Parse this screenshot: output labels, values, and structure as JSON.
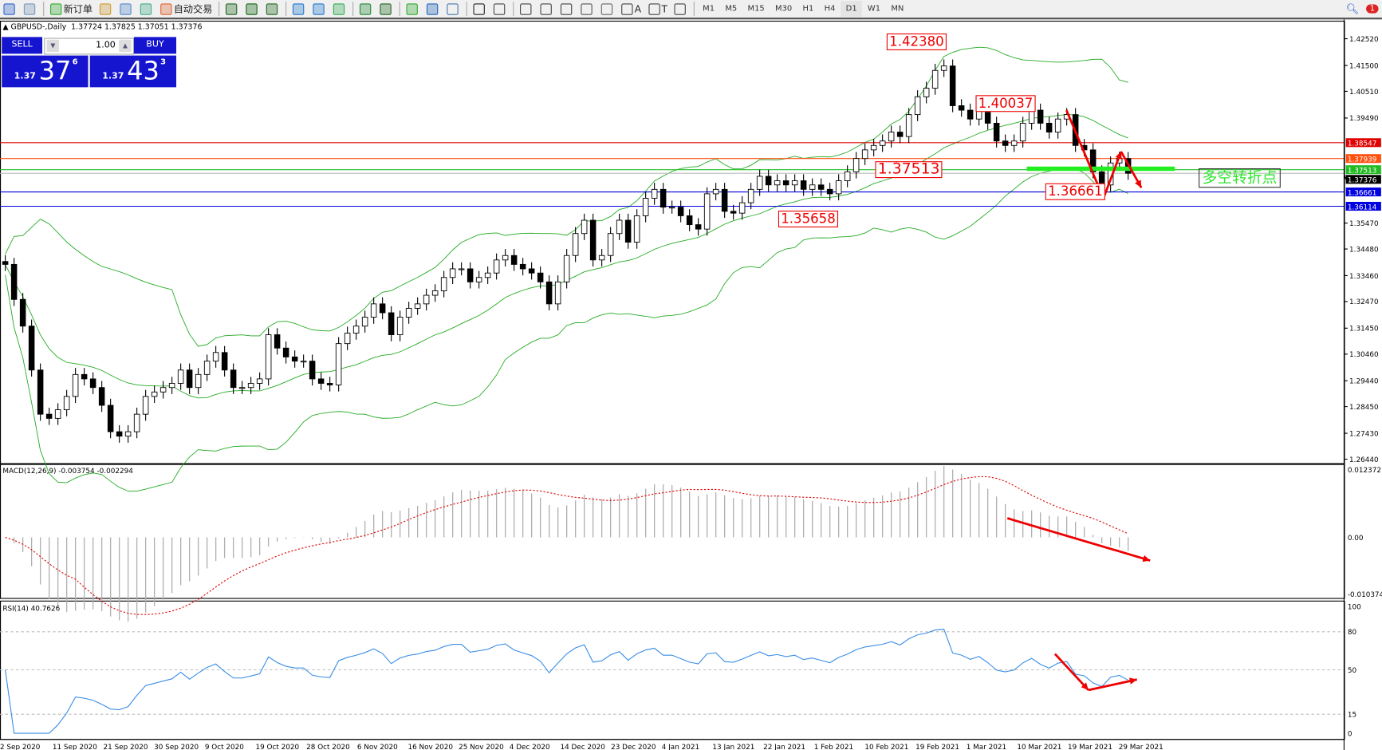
{
  "toolbar": {
    "items": [
      {
        "icon": "new-chart-icon",
        "label": ""
      },
      {
        "icon": "zoom-window-icon",
        "label": ""
      },
      {
        "icon": "new-order-icon",
        "label": "新订单"
      },
      {
        "icon": "metaeditor-icon",
        "label": ""
      },
      {
        "icon": "navigator-icon",
        "label": ""
      },
      {
        "icon": "signals-icon",
        "label": ""
      },
      {
        "icon": "autotrading-icon",
        "label": "自动交易"
      },
      {
        "icon": "bar-chart-icon",
        "label": ""
      },
      {
        "icon": "candlestick-icon",
        "label": ""
      },
      {
        "icon": "line-chart-icon",
        "label": ""
      },
      {
        "icon": "zoom-in-icon",
        "label": ""
      },
      {
        "icon": "zoom-out-icon",
        "label": ""
      },
      {
        "icon": "tile-windows-icon",
        "label": ""
      },
      {
        "icon": "autoscroll-icon",
        "label": ""
      },
      {
        "icon": "chart-shift-icon",
        "label": ""
      },
      {
        "icon": "indicators-icon",
        "label": ""
      },
      {
        "icon": "periods-icon",
        "label": ""
      },
      {
        "icon": "templates-icon",
        "label": ""
      },
      {
        "icon": "cursor-icon",
        "label": ""
      },
      {
        "icon": "crosshair-icon",
        "label": ""
      },
      {
        "icon": "vertical-line-icon",
        "label": ""
      },
      {
        "icon": "horizontal-line-icon",
        "label": ""
      },
      {
        "icon": "trendline-icon",
        "label": ""
      },
      {
        "icon": "equidistant-channel-icon",
        "label": ""
      },
      {
        "icon": "fibonacci-icon",
        "label": ""
      },
      {
        "icon": "text-icon",
        "label": "A"
      },
      {
        "icon": "text-label-icon",
        "label": "T"
      },
      {
        "icon": "arrows-icon",
        "label": ""
      }
    ],
    "timeframes": [
      "M1",
      "M5",
      "M15",
      "M30",
      "H1",
      "H4",
      "D1",
      "W1",
      "MN"
    ],
    "active_timeframe": "D1",
    "notification_count": "1"
  },
  "header": {
    "symbol": "GBPUSD-,Daily",
    "ohlc": "1.37724 1.37825 1.37051 1.37376"
  },
  "trade_panel": {
    "sell_label": "SELL",
    "buy_label": "BUY",
    "lot": "1.00",
    "sell_price": {
      "prefix": "1.37",
      "big": "37",
      "sup": "6"
    },
    "buy_price": {
      "prefix": "1.37",
      "big": "43",
      "sup": "3"
    }
  },
  "chart_data": {
    "type": "candlestick",
    "symbol": "GBPUSD-",
    "timeframe": "Daily",
    "closes": [
      1.3389,
      1.3255,
      1.3153,
      1.2985,
      1.2816,
      1.28,
      1.2833,
      1.2884,
      1.2968,
      1.2951,
      1.2918,
      1.285,
      1.2749,
      1.2732,
      1.2749,
      1.2816,
      1.2884,
      1.2901,
      1.2918,
      1.2934,
      1.2985,
      1.2918,
      1.2968,
      1.3019,
      1.3052,
      1.2985,
      1.2918,
      1.2918,
      1.2934,
      1.2951,
      1.312,
      1.3069,
      1.3035,
      1.3019,
      1.3019,
      1.2951,
      1.2934,
      1.2928,
      1.3086,
      1.3126,
      1.3153,
      1.3187,
      1.3238,
      1.3204,
      1.312,
      1.3187,
      1.3221,
      1.3238,
      1.3271,
      1.3288,
      1.3339,
      1.3372,
      1.3372,
      1.3322,
      1.3339,
      1.3356,
      1.3406,
      1.3423,
      1.3389,
      1.3372,
      1.3356,
      1.3322,
      1.3238,
      1.3322,
      1.3423,
      1.3507,
      1.3558,
      1.3406,
      1.3423,
      1.3507,
      1.3558,
      1.3474,
      1.3575,
      1.3642,
      1.3676,
      1.3608,
      1.3608,
      1.3575,
      1.3541,
      1.3524,
      1.3659,
      1.3676,
      1.3592,
      1.3585,
      1.3625,
      1.3676,
      1.3726,
      1.3693,
      1.3709,
      1.3693,
      1.3709,
      1.3676,
      1.3693,
      1.3676,
      1.3659,
      1.3709,
      1.3743,
      1.3794,
      1.3827,
      1.3844,
      1.3861,
      1.3895,
      1.3878,
      1.3962,
      1.403,
      1.4063,
      1.4131,
      1.4148,
      1.3996,
      1.3979,
      1.3945,
      1.3979,
      1.3929,
      1.3861,
      1.3844,
      1.3861,
      1.3929,
      1.3979,
      1.3929,
      1.3895,
      1.3945,
      1.3962,
      1.3844,
      1.3827,
      1.3743,
      1.3693,
      1.3777,
      1.3794,
      1.37376
    ],
    "first_open": 1.34,
    "price_ticks": [
      "1.42520",
      "1.41500",
      "1.40510",
      "1.39490",
      "1.38547",
      "1.37939",
      "1.37513",
      "1.37376",
      "1.36661",
      "1.36114",
      "1.35470",
      "1.34480",
      "1.33460",
      "1.32470",
      "1.31450",
      "1.30460",
      "1.29440",
      "1.28450",
      "1.27430",
      "1.26440"
    ],
    "price_range": [
      1.2644,
      1.4252
    ],
    "date_labels": [
      "2 Sep 2020",
      "11 Sep 2020",
      "21 Sep 2020",
      "30 Sep 2020",
      "9 Oct 2020",
      "19 Oct 2020",
      "28 Oct 2020",
      "6 Nov 2020",
      "16 Nov 2020",
      "25 Nov 2020",
      "4 Dec 2020",
      "14 Dec 2020",
      "23 Dec 2020",
      "4 Jan 2021",
      "13 Jan 2021",
      "22 Jan 2021",
      "1 Feb 2021",
      "10 Feb 2021",
      "19 Feb 2021",
      "1 Mar 2021",
      "10 Mar 2021",
      "19 Mar 2021",
      "29 Mar 2021"
    ],
    "bollinger": {
      "period": 20,
      "deviation": 2,
      "color": "#22aa22"
    },
    "hlines": [
      {
        "price": 1.38547,
        "label": "1.38547",
        "color": "#e00000"
      },
      {
        "price": 1.37939,
        "label": "1.37939",
        "color": "#ff5010"
      },
      {
        "price": 1.37513,
        "label": "1.37513",
        "color": "#22bb22"
      },
      {
        "price": 1.37376,
        "label": "1.37376",
        "color": "#000000"
      },
      {
        "price": 1.36661,
        "label": "1.36661",
        "color": "#0000e0"
      },
      {
        "price": 1.36114,
        "label": "1.36114",
        "color": "#0000e0"
      }
    ],
    "annotations": [
      "1.42380",
      "1.40037",
      "1.37513",
      "1.35658",
      "1.36661"
    ],
    "zone_label": "多空转折点",
    "macd": {
      "title": "MACD(12,26,9) -0.003754 -0.002294",
      "ticks": [
        "0.012372",
        "0.00",
        "-0.010374"
      ],
      "range": [
        -0.010374,
        0.012372
      ],
      "signal_color": "#e00000",
      "hist_color": "#b0b0b0"
    },
    "rsi": {
      "title": "RSI(14) 40.7626",
      "ticks": [
        "100",
        "80",
        "50",
        "15",
        "0"
      ],
      "levels": [
        80,
        50,
        15
      ],
      "color": "#3a8ee6"
    },
    "arrow_color": "#ee0000"
  }
}
